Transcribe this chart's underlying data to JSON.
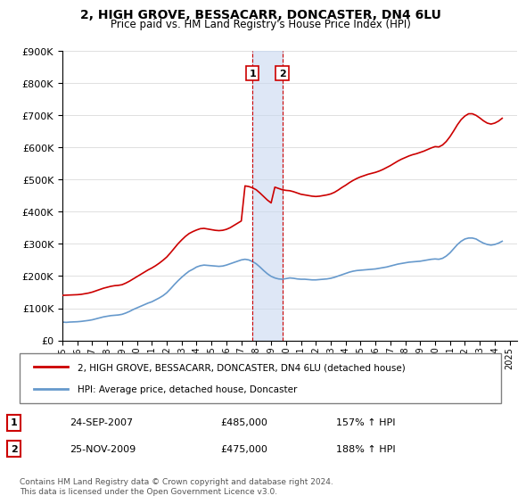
{
  "title": "2, HIGH GROVE, BESSACARR, DONCASTER, DN4 6LU",
  "subtitle": "Price paid vs. HM Land Registry's House Price Index (HPI)",
  "ylim": [
    0,
    900000
  ],
  "yticks": [
    0,
    100000,
    200000,
    300000,
    400000,
    500000,
    600000,
    700000,
    800000,
    900000
  ],
  "ytick_labels": [
    "£0",
    "£100K",
    "£200K",
    "£300K",
    "£400K",
    "£500K",
    "£600K",
    "£700K",
    "£800K",
    "£900K"
  ],
  "hpi_color": "#6699cc",
  "price_color": "#cc0000",
  "marker1_date_idx": 12.75,
  "marker2_date_idx": 14.9,
  "transaction1": {
    "label": "1",
    "date": "24-SEP-2007",
    "price": "£485,000",
    "hpi": "157% ↑ HPI",
    "value": 485000
  },
  "transaction2": {
    "label": "2",
    "date": "25-NOV-2009",
    "price": "£475,000",
    "hpi": "188% ↑ HPI",
    "value": 475000
  },
  "legend_line1": "2, HIGH GROVE, BESSACARR, DONCASTER, DN4 6LU (detached house)",
  "legend_line2": "HPI: Average price, detached house, Doncaster",
  "footnote": "Contains HM Land Registry data © Crown copyright and database right 2024.\nThis data is licensed under the Open Government Licence v3.0.",
  "hpi_data": {
    "dates": [
      1995.0,
      1995.25,
      1995.5,
      1995.75,
      1996.0,
      1996.25,
      1996.5,
      1996.75,
      1997.0,
      1997.25,
      1997.5,
      1997.75,
      1998.0,
      1998.25,
      1998.5,
      1998.75,
      1999.0,
      1999.25,
      1999.5,
      1999.75,
      2000.0,
      2000.25,
      2000.5,
      2000.75,
      2001.0,
      2001.25,
      2001.5,
      2001.75,
      2002.0,
      2002.25,
      2002.5,
      2002.75,
      2003.0,
      2003.25,
      2003.5,
      2003.75,
      2004.0,
      2004.25,
      2004.5,
      2004.75,
      2005.0,
      2005.25,
      2005.5,
      2005.75,
      2006.0,
      2006.25,
      2006.5,
      2006.75,
      2007.0,
      2007.25,
      2007.5,
      2007.75,
      2008.0,
      2008.25,
      2008.5,
      2008.75,
      2009.0,
      2009.25,
      2009.5,
      2009.75,
      2010.0,
      2010.25,
      2010.5,
      2010.75,
      2011.0,
      2011.25,
      2011.5,
      2011.75,
      2012.0,
      2012.25,
      2012.5,
      2012.75,
      2013.0,
      2013.25,
      2013.5,
      2013.75,
      2014.0,
      2014.25,
      2014.5,
      2014.75,
      2015.0,
      2015.25,
      2015.5,
      2015.75,
      2016.0,
      2016.25,
      2016.5,
      2016.75,
      2017.0,
      2017.25,
      2017.5,
      2017.75,
      2018.0,
      2018.25,
      2018.5,
      2018.75,
      2019.0,
      2019.25,
      2019.5,
      2019.75,
      2020.0,
      2020.25,
      2020.5,
      2020.75,
      2021.0,
      2021.25,
      2021.5,
      2021.75,
      2022.0,
      2022.25,
      2022.5,
      2022.75,
      2023.0,
      2023.25,
      2023.5,
      2023.75,
      2024.0,
      2024.25,
      2024.5
    ],
    "values": [
      57000,
      56000,
      57000,
      57500,
      58000,
      59000,
      60500,
      62000,
      64000,
      67000,
      70000,
      73000,
      75000,
      77000,
      78000,
      79000,
      81000,
      85000,
      90000,
      96000,
      101000,
      106000,
      111000,
      116000,
      120000,
      126000,
      132000,
      139000,
      148000,
      160000,
      173000,
      185000,
      196000,
      206000,
      215000,
      221000,
      228000,
      232000,
      234000,
      233000,
      232000,
      231000,
      230000,
      231000,
      234000,
      238000,
      242000,
      246000,
      250000,
      252000,
      250000,
      245000,
      238000,
      228000,
      217000,
      207000,
      199000,
      194000,
      191000,
      190000,
      192000,
      194000,
      193000,
      191000,
      190000,
      190000,
      189000,
      188000,
      188000,
      189000,
      190000,
      191000,
      193000,
      196000,
      200000,
      204000,
      208000,
      212000,
      215000,
      217000,
      218000,
      219000,
      220000,
      221000,
      222000,
      224000,
      226000,
      228000,
      231000,
      234000,
      237000,
      239000,
      241000,
      243000,
      244000,
      245000,
      246000,
      248000,
      250000,
      252000,
      253000,
      252000,
      255000,
      262000,
      272000,
      285000,
      298000,
      308000,
      315000,
      318000,
      318000,
      315000,
      308000,
      302000,
      298000,
      296000,
      298000,
      302000,
      308000
    ]
  },
  "price_data": {
    "dates": [
      1995.0,
      1995.25,
      1995.5,
      1995.75,
      1996.0,
      1996.25,
      1996.5,
      1996.75,
      1997.0,
      1997.25,
      1997.5,
      1997.75,
      1998.0,
      1998.25,
      1998.5,
      1998.75,
      1999.0,
      1999.25,
      1999.5,
      1999.75,
      2000.0,
      2000.25,
      2000.5,
      2000.75,
      2001.0,
      2001.25,
      2001.5,
      2001.75,
      2002.0,
      2002.25,
      2002.5,
      2002.75,
      2003.0,
      2003.25,
      2003.5,
      2003.75,
      2004.0,
      2004.25,
      2004.5,
      2004.75,
      2005.0,
      2005.25,
      2005.5,
      2005.75,
      2006.0,
      2006.25,
      2006.5,
      2006.75,
      2007.0,
      2007.25,
      2007.5,
      2007.75,
      2008.0,
      2008.25,
      2008.5,
      2008.75,
      2009.0,
      2009.25,
      2009.5,
      2009.75,
      2010.0,
      2010.25,
      2010.5,
      2010.75,
      2011.0,
      2011.25,
      2011.5,
      2011.75,
      2012.0,
      2012.25,
      2012.5,
      2012.75,
      2013.0,
      2013.25,
      2013.5,
      2013.75,
      2014.0,
      2014.25,
      2014.5,
      2014.75,
      2015.0,
      2015.25,
      2015.5,
      2015.75,
      2016.0,
      2016.25,
      2016.5,
      2016.75,
      2017.0,
      2017.25,
      2017.5,
      2017.75,
      2018.0,
      2018.25,
      2018.5,
      2018.75,
      2019.0,
      2019.25,
      2019.5,
      2019.75,
      2020.0,
      2020.25,
      2020.5,
      2020.75,
      2021.0,
      2021.25,
      2021.5,
      2021.75,
      2022.0,
      2022.25,
      2022.5,
      2022.75,
      2023.0,
      2023.25,
      2023.5,
      2023.75,
      2024.0,
      2024.25,
      2024.5
    ],
    "values": [
      140000,
      140500,
      141000,
      141500,
      142000,
      143000,
      145000,
      147000,
      150000,
      154000,
      158000,
      162000,
      165000,
      168000,
      170000,
      171000,
      173000,
      178000,
      184000,
      191000,
      198000,
      205000,
      212000,
      219000,
      225000,
      232000,
      240000,
      249000,
      259000,
      272000,
      286000,
      300000,
      312000,
      323000,
      332000,
      338000,
      343000,
      347000,
      348000,
      346000,
      344000,
      342000,
      341000,
      342000,
      345000,
      350000,
      357000,
      364000,
      371000,
      480000,
      478000,
      474000,
      468000,
      458000,
      447000,
      436000,
      427000,
      476000,
      472000,
      468000,
      466000,
      465000,
      462000,
      458000,
      454000,
      452000,
      450000,
      448000,
      447000,
      448000,
      450000,
      452000,
      455000,
      460000,
      467000,
      475000,
      482000,
      490000,
      497000,
      503000,
      508000,
      512000,
      516000,
      519000,
      522000,
      526000,
      531000,
      537000,
      543000,
      550000,
      557000,
      563000,
      568000,
      573000,
      577000,
      580000,
      584000,
      588000,
      593000,
      598000,
      602000,
      601000,
      607000,
      618000,
      633000,
      651000,
      670000,
      686000,
      697000,
      704000,
      704000,
      699000,
      691000,
      682000,
      675000,
      672000,
      675000,
      681000,
      690000
    ]
  }
}
